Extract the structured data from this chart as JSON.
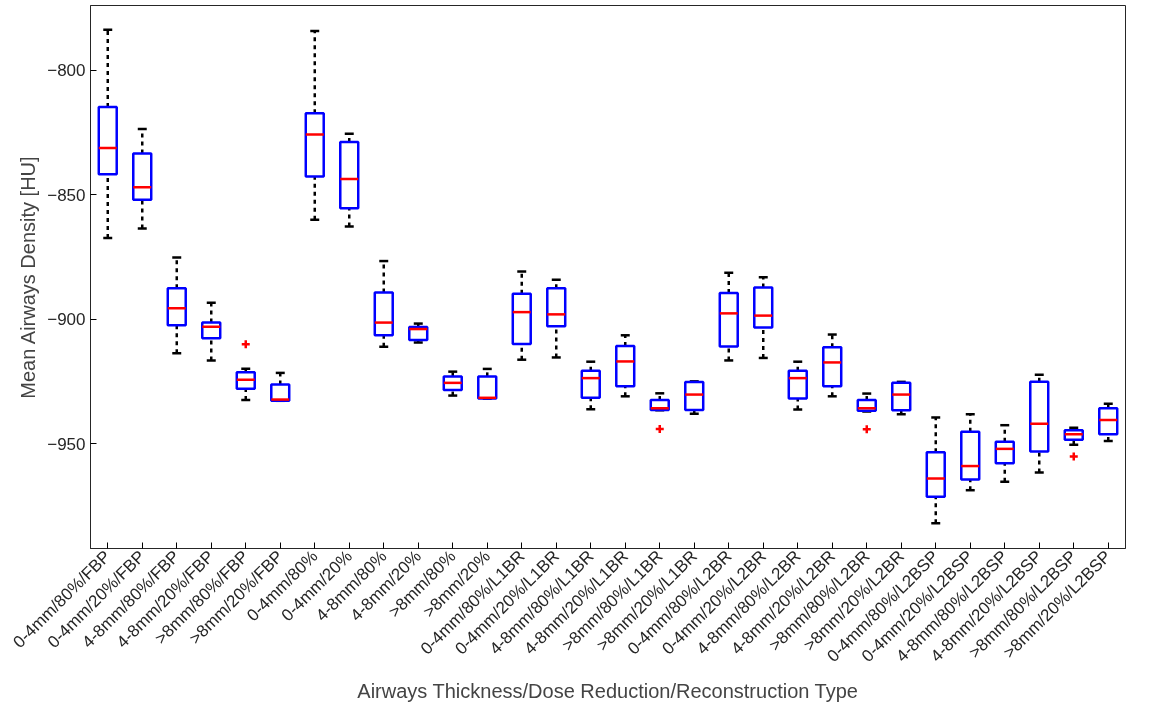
{
  "chart_data": {
    "type": "box",
    "xlabel": "Airways Thickness/Dose Reduction/Reconstruction Type",
    "ylabel": "Mean Airways Density [HU]",
    "categories": [
      "0-4mm/80%/FBP",
      "0-4mm/20%/FBP",
      "4-8mm/80%/FBP",
      "4-8mm/20%/FBP",
      ">8mm/80%/FBP",
      ">8mm/20%/FBP",
      "0-4mm/80%",
      "0-4mm/20%",
      "4-8mm/80%",
      "4-8mm/20%",
      ">8mm/80%",
      ">8mm/20%",
      "0-4mm/80%/L1BR",
      "0-4mm/20%/L1BR",
      "4-8mm/80%/L1BR",
      "4-8mm/20%/L1BR",
      ">8mm/80%/L1BR",
      ">8mm/20%/L1BR",
      "0-4mm/80%/L2BR",
      "0-4mm/20%/L2BR",
      "4-8mm/80%/L2BR",
      "4-8mm/20%/L2BR",
      ">8mm/80%/L2BR",
      ">8mm/20%/L2BR",
      "0-4mm/80%/L2BSP",
      "0-4mm/20%/L2BSP",
      "4-8mm/80%/L2BSP",
      "4-8mm/20%/L2BSP",
      ">8mm/80%/L2BSP",
      ">8mm/20%/L2BSP"
    ],
    "ylim": [
      -992,
      -774
    ],
    "yticks": [
      -800,
      -850,
      -900,
      -950
    ],
    "grid": false,
    "series": [
      {
        "color": "#0000ff",
        "boxes": [
          {
            "low": -867.3,
            "q1": -841.7,
            "median": -831.2,
            "q3": -814.7,
            "high": -783.7
          },
          {
            "low": -863.5,
            "q1": -852.0,
            "median": -847.0,
            "q3": -833.4,
            "high": -823.6
          },
          {
            "low": -913.6,
            "q1": -902.4,
            "median": -895.5,
            "q3": -887.5,
            "high": -875.2
          },
          {
            "low": -916.5,
            "q1": -907.6,
            "median": -903.0,
            "q3": -901.3,
            "high": -893.3
          },
          {
            "low": -932.4,
            "q1": -927.9,
            "median": -924.3,
            "q3": -921.2,
            "high": -919.8,
            "outliers": [
              -910.0
            ]
          },
          {
            "low": -932.7,
            "q1": -932.7,
            "median": -932.2,
            "q3": -926.2,
            "high": -921.5
          },
          {
            "low": -860.0,
            "q1": -842.7,
            "median": -825.8,
            "q3": -817.3,
            "high": -784.2
          },
          {
            "low": -862.7,
            "q1": -855.4,
            "median": -843.7,
            "q3": -828.8,
            "high": -825.5
          },
          {
            "low": -911.0,
            "q1": -906.4,
            "median": -901.3,
            "q3": -889.2,
            "high": -876.6
          },
          {
            "low": -909.3,
            "q1": -908.3,
            "median": -903.9,
            "q3": -903.1,
            "high": -901.7
          },
          {
            "low": -930.6,
            "q1": -928.4,
            "median": -925.5,
            "q3": -922.9,
            "high": -921.0
          },
          {
            "low": -931.8,
            "q1": -931.8,
            "median": -931.5,
            "q3": -922.9,
            "high": -919.9
          },
          {
            "low": -916.2,
            "q1": -909.9,
            "median": -897.1,
            "q3": -889.7,
            "high": -880.8
          },
          {
            "low": -915.3,
            "q1": -902.8,
            "median": -898.0,
            "q3": -887.5,
            "high": -884.1
          },
          {
            "low": -936.1,
            "q1": -931.5,
            "median": -923.6,
            "q3": -920.6,
            "high": -917.0
          },
          {
            "low": -930.9,
            "q1": -926.9,
            "median": -916.9,
            "q3": -910.7,
            "high": -906.4
          },
          {
            "low": -936.5,
            "q1": -936.4,
            "median": -935.7,
            "q3": -932.4,
            "high": -929.7,
            "outliers": [
              -944.0
            ]
          },
          {
            "low": -937.9,
            "q1": -936.4,
            "median": -930.2,
            "q3": -925.2,
            "high": -924.9
          },
          {
            "low": -916.5,
            "q1": -910.9,
            "median": -897.6,
            "q3": -889.4,
            "high": -881.3
          },
          {
            "low": -915.5,
            "q1": -903.3,
            "median": -898.5,
            "q3": -887.2,
            "high": -883.1
          },
          {
            "low": -936.2,
            "q1": -931.8,
            "median": -923.6,
            "q3": -920.6,
            "high": -917.0
          },
          {
            "low": -930.9,
            "q1": -926.9,
            "median": -917.3,
            "q3": -911.2,
            "high": -906.1
          },
          {
            "low": -937.0,
            "q1": -936.7,
            "median": -935.7,
            "q3": -932.4,
            "high": -929.8,
            "outliers": [
              -944.1
            ]
          },
          {
            "low": -938.1,
            "q1": -936.5,
            "median": -930.2,
            "q3": -925.5,
            "high": -925.1
          },
          {
            "low": -981.9,
            "q1": -971.2,
            "median": -963.9,
            "q3": -953.4,
            "high": -939.4
          },
          {
            "low": -968.6,
            "q1": -964.3,
            "median": -958.9,
            "q3": -945.1,
            "high": -938.1
          },
          {
            "low": -965.2,
            "q1": -957.8,
            "median": -952.0,
            "q3": -949.1,
            "high": -942.5
          },
          {
            "low": -961.5,
            "q1": -953.1,
            "median": -941.9,
            "q3": -925.1,
            "high": -922.2
          },
          {
            "low": -950.3,
            "q1": -948.3,
            "median": -946.1,
            "q3": -944.5,
            "high": -943.5,
            "outliers": [
              -955.1
            ]
          },
          {
            "low": -948.8,
            "q1": -946.1,
            "median": -940.4,
            "q3": -935.7,
            "high": -933.9
          }
        ]
      }
    ]
  }
}
